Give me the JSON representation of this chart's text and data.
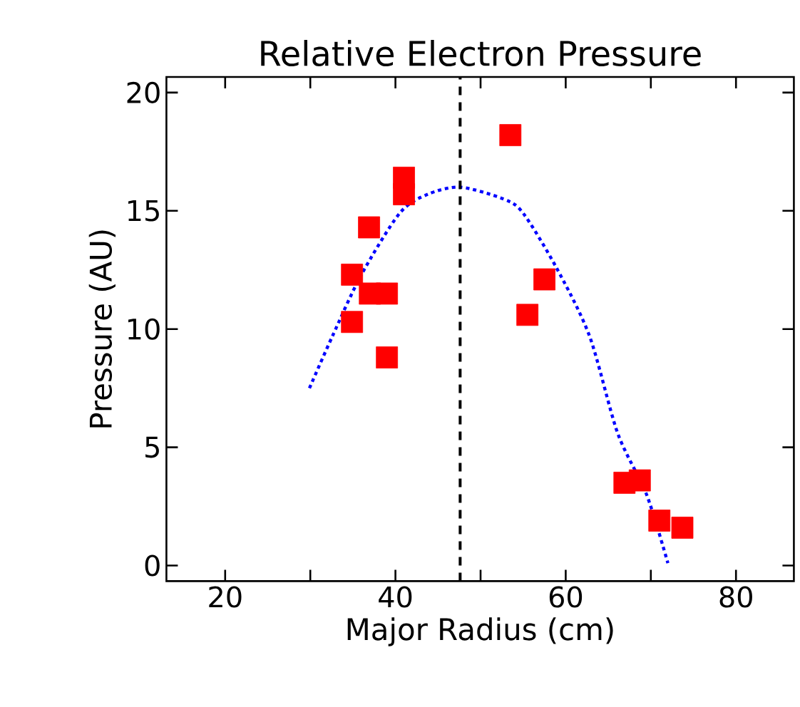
{
  "chart_data": {
    "type": "scatter",
    "title": "Relative Electron Pressure",
    "xlabel": "Major Radius (cm)",
    "ylabel": "Pressure (AU)",
    "xlim": [
      13.1,
      86.8
    ],
    "ylim": [
      -0.66,
      20.66
    ],
    "xticks": [
      20,
      {
        "value": 30,
        "label": null
      },
      40,
      {
        "value": 50,
        "label": null
      },
      60,
      {
        "value": 70,
        "label": null
      },
      80
    ],
    "yticks": [
      0,
      5,
      10,
      15,
      20
    ],
    "grid": false,
    "series": [
      {
        "color": "#ff0000",
        "marker": "square",
        "x": [
          53.5,
          41.0,
          41.0,
          36.9,
          34.9,
          37.0,
          39.0,
          34.9,
          39.0,
          55.5,
          57.5,
          66.9,
          68.7,
          71.0,
          73.7
        ],
        "values": [
          18.2,
          16.4,
          15.7,
          14.3,
          12.3,
          11.5,
          11.5,
          10.3,
          8.8,
          10.6,
          12.1,
          3.5,
          3.6,
          1.9,
          1.6
        ]
      },
      {
        "type": "line",
        "color": "#0000ff",
        "marker": "none",
        "line_style": "dotted",
        "x": [
          29.9,
          32.6,
          36.0,
          40.5,
          43.8,
          47.6,
          52.7,
          55.0,
          58.9,
          62.8,
          66.1,
          69.5,
          72.0
        ],
        "values": [
          7.5,
          9.7,
          12.3,
          14.9,
          15.7,
          16.0,
          15.5,
          14.9,
          12.6,
          9.7,
          5.6,
          3.0,
          0.1
        ]
      }
    ],
    "ref_lines": [
      {
        "axis": "x",
        "value": 47.6,
        "color": "#000000",
        "line_style": "dashed"
      }
    ]
  }
}
